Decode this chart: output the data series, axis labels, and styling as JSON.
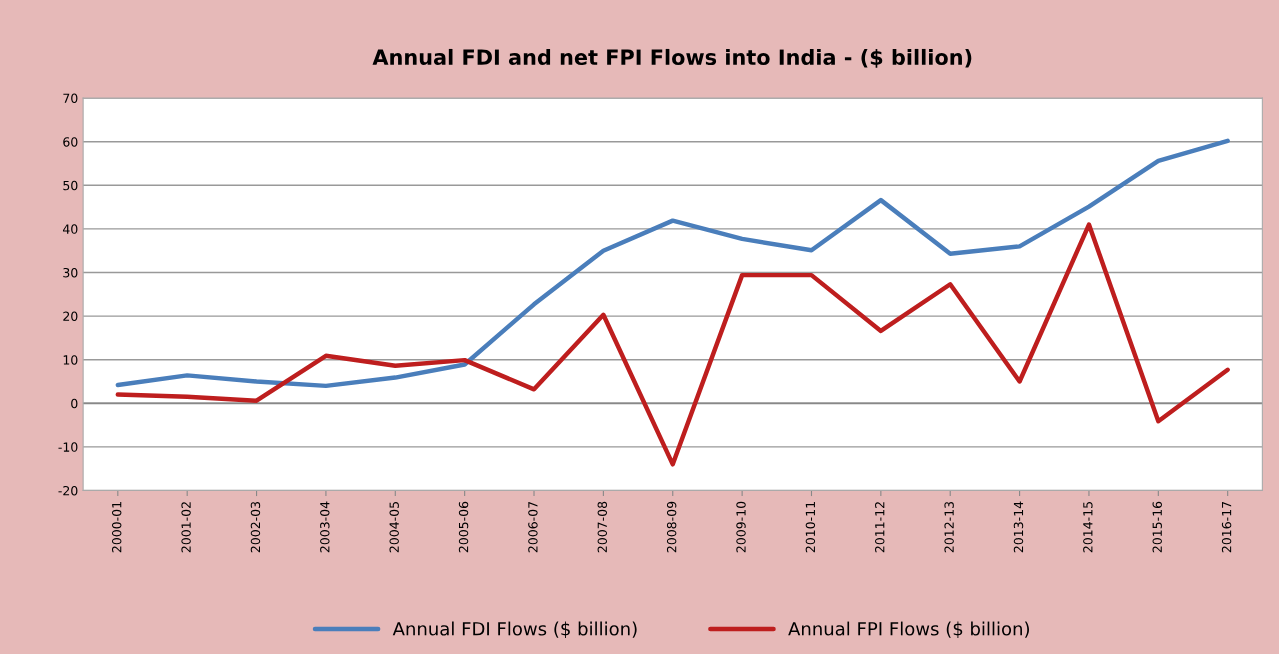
{
  "chart_data": {
    "type": "line",
    "title": "Annual FDI and net FPI Flows into India - ($ billion)",
    "categories": [
      "2000-01",
      "2001-02",
      "2002-03",
      "2003-04",
      "2004-05",
      "2005-06",
      "2006-07",
      "2007-08",
      "2008-09",
      "2009-10",
      "2010-11",
      "2011-12",
      "2012-13",
      "2013-14",
      "2014-15",
      "2015-16",
      "2016-17"
    ],
    "series": [
      {
        "name": "Annual FDI Flows ($ billion)",
        "color": "#4a7ebb",
        "values": [
          4.2,
          6.4,
          5,
          4,
          5.9,
          8.9,
          22.7,
          35,
          41.9,
          37.7,
          35.1,
          46.6,
          34.3,
          36,
          45.1,
          55.6,
          60.2
        ]
      },
      {
        "name": "Annual FPI Flows ($ billion)",
        "color": "#be1e1e",
        "values": [
          2,
          1.5,
          0.6,
          10.9,
          8.6,
          9.9,
          3.2,
          20.3,
          -14,
          29.4,
          29.4,
          16.6,
          27.3,
          5,
          41,
          -4.1,
          7.7
        ]
      }
    ],
    "ylim": [
      -20,
      70
    ],
    "yticks": [
      -20,
      -10,
      0,
      10,
      20,
      30,
      40,
      50,
      60,
      70
    ],
    "grid": "y",
    "legend": "bottom",
    "marker": "none",
    "line_style": "solid"
  }
}
